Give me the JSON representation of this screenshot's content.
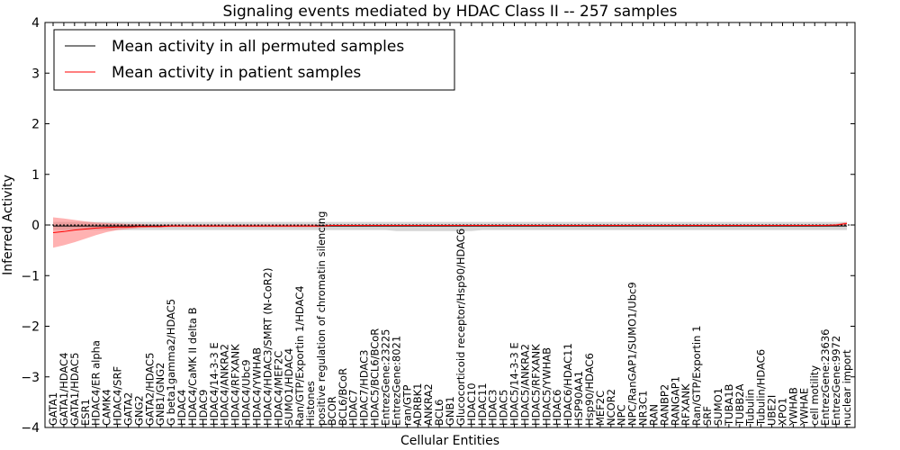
{
  "chart_data": {
    "type": "line",
    "title": "Signaling events mediated by HDAC Class II -- 257 samples",
    "xlabel": "Cellular Entities",
    "ylabel": "Inferred Activity",
    "ylim": [
      -4,
      4
    ],
    "yticks": [
      -4,
      -3,
      -2,
      -1,
      0,
      1,
      2,
      3,
      4
    ],
    "legend_position": "top-left",
    "categories": [
      "GATA1",
      "GATA1/HDAC4",
      "GATA1/HDAC5",
      "ESR1",
      "HDAC4/ER alpha",
      "CAMK4",
      "HDAC4/SRF",
      "GATA2",
      "GNG2",
      "GATA2/HDAC5",
      "GNB1/GNG2",
      "G beta1gamma2/HDAC5",
      "HDAC4",
      "HDAC4/CaMK II delta B",
      "HDAC9",
      "HDAC4/14-3-3 E",
      "HDAC4/ANKRA2",
      "HDAC4/RFXANK",
      "HDAC4/Ubc9",
      "HDAC4/YWHAB",
      "HDAC4/HDAC3/SMRT (N-CoR2)",
      "HDAC4/MEF2C",
      "SUMO1/HDAC4",
      "Ran/GTP/Exportin 1/HDAC4",
      "Histones",
      "positive regulation of chromatin silencing",
      "BCOR",
      "BCL6/BCoR",
      "HDAC7",
      "HDAC7/HDAC3",
      "HDAC5/BCL6/BCoR",
      "EntrezGene:23225",
      "EntrezGene:8021",
      "ran/GTP",
      "ADRBK1",
      "ANKRA2",
      "BCL6",
      "GNB1",
      "Glucocorticoid receptor/Hsp90/HDAC6",
      "HDAC10",
      "HDAC11",
      "HDAC3",
      "HDAC5",
      "HDAC5/14-3-3 E",
      "HDAC5/ANKRA2",
      "HDAC5/RFXANK",
      "HDAC5/YWHAB",
      "HDAC6",
      "HDAC6/HDAC11",
      "HSP90AA1",
      "Hsp90/HDAC6",
      "MEF2C",
      "NCOR2",
      "NPC",
      "NPC/RanGAP1/SUMO1/Ubc9",
      "NR3C1",
      "RAN",
      "RANBP2",
      "RANGAP1",
      "RFXANK",
      "Ran/GTP/Exportin 1",
      "SRF",
      "SUMO1",
      "TUBA1B",
      "TUBB2A",
      "Tubulin",
      "Tubulin/HDAC6",
      "UBE2I",
      "XPO1",
      "YWHAB",
      "YWHAE",
      "cell motility",
      "EntrezGene:23636",
      "EntrezGene:9972",
      "nuclear import"
    ],
    "series": [
      {
        "name": "Mean activity in all permuted samples",
        "color": "#000000",
        "band_color": "#bbbbbb",
        "values": [
          -0.02,
          -0.02,
          -0.02,
          -0.02,
          -0.02,
          -0.02,
          -0.02,
          -0.02,
          -0.02,
          -0.02,
          -0.02,
          -0.02,
          -0.02,
          -0.02,
          -0.02,
          -0.02,
          -0.02,
          -0.02,
          -0.02,
          -0.02,
          -0.02,
          -0.02,
          -0.02,
          -0.02,
          -0.02,
          -0.02,
          -0.02,
          -0.02,
          -0.02,
          -0.02,
          -0.02,
          -0.02,
          -0.02,
          -0.02,
          -0.02,
          -0.02,
          -0.02,
          -0.02,
          -0.02,
          -0.02,
          -0.02,
          -0.02,
          -0.02,
          -0.02,
          -0.02,
          -0.02,
          -0.02,
          -0.02,
          -0.02,
          -0.02,
          -0.02,
          -0.02,
          -0.02,
          -0.02,
          -0.02,
          -0.02,
          -0.02,
          -0.02,
          -0.02,
          -0.02,
          -0.02,
          -0.02,
          -0.02,
          -0.02,
          -0.02,
          -0.02,
          -0.02,
          -0.02,
          -0.02,
          -0.02,
          -0.02,
          -0.02,
          -0.02,
          -0.02,
          -0.02
        ],
        "lower": [
          -0.1,
          -0.1,
          -0.1,
          -0.1,
          -0.1,
          -0.1,
          -0.1,
          -0.1,
          -0.1,
          -0.1,
          -0.1,
          -0.1,
          -0.1,
          -0.1,
          -0.1,
          -0.1,
          -0.1,
          -0.1,
          -0.1,
          -0.1,
          -0.1,
          -0.1,
          -0.1,
          -0.1,
          -0.1,
          -0.1,
          -0.1,
          -0.1,
          -0.1,
          -0.1,
          -0.1,
          -0.1,
          -0.12,
          -0.12,
          -0.12,
          -0.12,
          -0.12,
          -0.12,
          -0.12,
          -0.12,
          -0.1,
          -0.1,
          -0.1,
          -0.1,
          -0.1,
          -0.1,
          -0.1,
          -0.1,
          -0.1,
          -0.1,
          -0.1,
          -0.1,
          -0.1,
          -0.1,
          -0.1,
          -0.1,
          -0.1,
          -0.1,
          -0.1,
          -0.1,
          -0.1,
          -0.1,
          -0.1,
          -0.1,
          -0.1,
          -0.1,
          -0.1,
          -0.1,
          -0.1,
          -0.1,
          -0.1,
          -0.1,
          -0.1,
          -0.1,
          -0.1
        ],
        "upper": [
          0.06,
          0.06,
          0.06,
          0.06,
          0.06,
          0.06,
          0.06,
          0.06,
          0.06,
          0.06,
          0.06,
          0.06,
          0.06,
          0.06,
          0.06,
          0.06,
          0.06,
          0.06,
          0.06,
          0.06,
          0.06,
          0.06,
          0.06,
          0.06,
          0.06,
          0.06,
          0.06,
          0.06,
          0.06,
          0.06,
          0.06,
          0.06,
          0.06,
          0.06,
          0.06,
          0.06,
          0.06,
          0.06,
          0.06,
          0.06,
          0.06,
          0.06,
          0.06,
          0.06,
          0.06,
          0.06,
          0.06,
          0.06,
          0.06,
          0.06,
          0.06,
          0.06,
          0.06,
          0.06,
          0.06,
          0.06,
          0.06,
          0.06,
          0.06,
          0.06,
          0.06,
          0.06,
          0.06,
          0.06,
          0.06,
          0.06,
          0.06,
          0.06,
          0.06,
          0.06,
          0.06,
          0.06,
          0.06,
          0.06,
          0.06
        ]
      },
      {
        "name": "Mean activity in patient samples",
        "color": "#ff0000",
        "band_color": "#ff6666",
        "values": [
          -0.15,
          -0.13,
          -0.1,
          -0.08,
          -0.06,
          -0.05,
          -0.04,
          -0.04,
          -0.03,
          -0.03,
          -0.03,
          -0.02,
          -0.02,
          -0.02,
          -0.02,
          -0.02,
          -0.02,
          -0.02,
          -0.02,
          -0.02,
          -0.02,
          -0.02,
          -0.02,
          -0.02,
          -0.02,
          -0.02,
          -0.01,
          -0.01,
          -0.01,
          -0.01,
          -0.01,
          -0.01,
          -0.01,
          -0.01,
          -0.01,
          -0.01,
          -0.01,
          -0.01,
          -0.01,
          -0.01,
          -0.01,
          -0.01,
          -0.01,
          -0.01,
          -0.01,
          -0.01,
          -0.01,
          -0.01,
          -0.01,
          -0.01,
          -0.01,
          -0.01,
          -0.01,
          -0.01,
          -0.01,
          -0.01,
          -0.01,
          -0.01,
          -0.01,
          -0.01,
          -0.01,
          -0.01,
          -0.01,
          -0.01,
          -0.01,
          -0.01,
          -0.01,
          -0.01,
          -0.01,
          -0.01,
          -0.01,
          -0.01,
          -0.01,
          0.0,
          0.03
        ],
        "lower": [
          -0.45,
          -0.4,
          -0.34,
          -0.27,
          -0.2,
          -0.14,
          -0.1,
          -0.08,
          -0.06,
          -0.05,
          -0.05,
          -0.04,
          -0.04,
          -0.04,
          -0.04,
          -0.04,
          -0.04,
          -0.04,
          -0.04,
          -0.04,
          -0.04,
          -0.04,
          -0.04,
          -0.04,
          -0.04,
          -0.04,
          -0.03,
          -0.03,
          -0.03,
          -0.03,
          -0.03,
          -0.03,
          -0.03,
          -0.03,
          -0.03,
          -0.03,
          -0.03,
          -0.03,
          -0.03,
          -0.03,
          -0.03,
          -0.03,
          -0.03,
          -0.03,
          -0.03,
          -0.03,
          -0.03,
          -0.03,
          -0.03,
          -0.03,
          -0.03,
          -0.03,
          -0.03,
          -0.03,
          -0.03,
          -0.03,
          -0.03,
          -0.03,
          -0.03,
          -0.03,
          -0.03,
          -0.03,
          -0.03,
          -0.03,
          -0.03,
          -0.03,
          -0.03,
          -0.03,
          -0.03,
          -0.03,
          -0.03,
          -0.03,
          -0.03,
          -0.02,
          0.0
        ],
        "upper": [
          0.15,
          0.13,
          0.1,
          0.07,
          0.05,
          0.04,
          0.03,
          0.02,
          0.02,
          0.01,
          0.01,
          0.01,
          0.01,
          0.01,
          0.01,
          0.01,
          0.01,
          0.01,
          0.01,
          0.01,
          0.01,
          0.01,
          0.01,
          0.01,
          0.01,
          0.01,
          0.01,
          0.01,
          0.01,
          0.01,
          0.01,
          0.01,
          0.01,
          0.01,
          0.01,
          0.01,
          0.01,
          0.01,
          0.01,
          0.01,
          0.01,
          0.01,
          0.01,
          0.01,
          0.01,
          0.01,
          0.01,
          0.01,
          0.01,
          0.01,
          0.01,
          0.01,
          0.01,
          0.01,
          0.01,
          0.01,
          0.01,
          0.01,
          0.01,
          0.01,
          0.01,
          0.01,
          0.01,
          0.01,
          0.01,
          0.01,
          0.01,
          0.01,
          0.01,
          0.01,
          0.01,
          0.01,
          0.01,
          0.02,
          0.06
        ]
      }
    ]
  }
}
